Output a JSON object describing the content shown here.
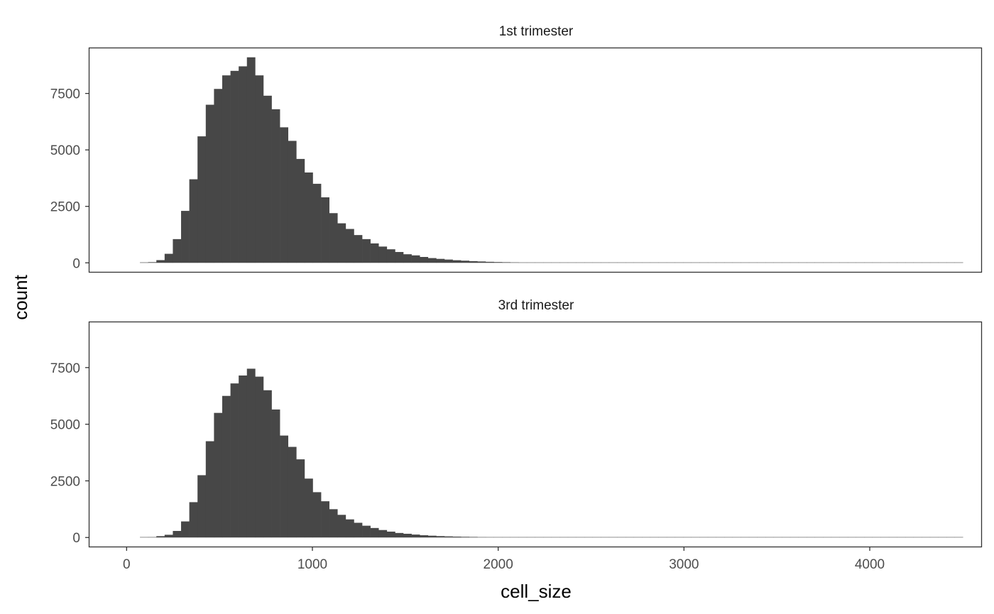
{
  "chart_data": {
    "type": "bar",
    "xlabel": "cell_size",
    "ylabel": "count",
    "xlim": [
      -200,
      4600
    ],
    "ylim": [
      -400,
      9500
    ],
    "x_ticks": [
      0,
      1000,
      2000,
      3000,
      4000
    ],
    "y_ticks": [
      0,
      2500,
      5000,
      7500
    ],
    "x_tick_labels": [
      "0",
      "1000",
      "2000",
      "3000",
      "4000"
    ],
    "y_tick_labels": [
      "0",
      "2500",
      "5000",
      "7500"
    ],
    "bin_width": 44.3,
    "bin_start": 71.6,
    "grid": false,
    "facets": [
      {
        "label": "1st trimester",
        "counts": [
          20,
          30,
          120,
          400,
          1050,
          2300,
          3700,
          5600,
          7000,
          7700,
          8300,
          8500,
          8700,
          9100,
          8300,
          7400,
          6800,
          6000,
          5400,
          4600,
          4000,
          3500,
          2900,
          2200,
          1750,
          1500,
          1230,
          1050,
          860,
          720,
          600,
          480,
          380,
          330,
          260,
          210,
          175,
          145,
          115,
          95,
          75,
          60,
          45,
          35,
          28,
          22,
          18,
          15,
          12,
          10,
          8,
          7,
          6,
          6,
          5,
          5,
          4,
          4,
          3,
          3,
          3,
          2,
          2,
          2,
          2,
          2,
          1,
          1,
          1,
          1,
          1,
          1,
          1,
          1,
          1,
          1,
          1,
          1,
          1,
          1,
          1,
          1,
          1,
          1,
          1,
          1,
          1,
          1,
          1,
          1,
          1,
          1,
          1,
          1,
          1,
          1,
          1,
          1,
          1,
          1
        ]
      },
      {
        "label": "3rd trimester",
        "counts": [
          0,
          20,
          60,
          120,
          290,
          710,
          1560,
          2750,
          4250,
          5500,
          6250,
          6800,
          7150,
          7450,
          7100,
          6500,
          5650,
          4500,
          4000,
          3450,
          2600,
          2000,
          1600,
          1250,
          1000,
          800,
          650,
          520,
          420,
          330,
          260,
          200,
          165,
          130,
          100,
          80,
          62,
          50,
          40,
          32,
          26,
          20,
          16,
          13,
          10,
          8,
          7,
          6,
          5,
          4,
          4,
          3,
          3,
          3,
          2,
          2,
          2,
          2,
          2,
          1,
          1,
          1,
          1,
          1,
          1,
          1,
          1,
          1,
          1,
          1,
          1,
          1,
          1,
          1,
          1,
          1,
          1,
          1,
          1,
          0,
          0,
          0,
          0,
          0,
          0,
          0,
          0,
          0,
          0,
          0,
          0,
          0,
          0,
          0,
          0,
          0,
          0,
          0,
          0,
          0
        ]
      }
    ]
  }
}
